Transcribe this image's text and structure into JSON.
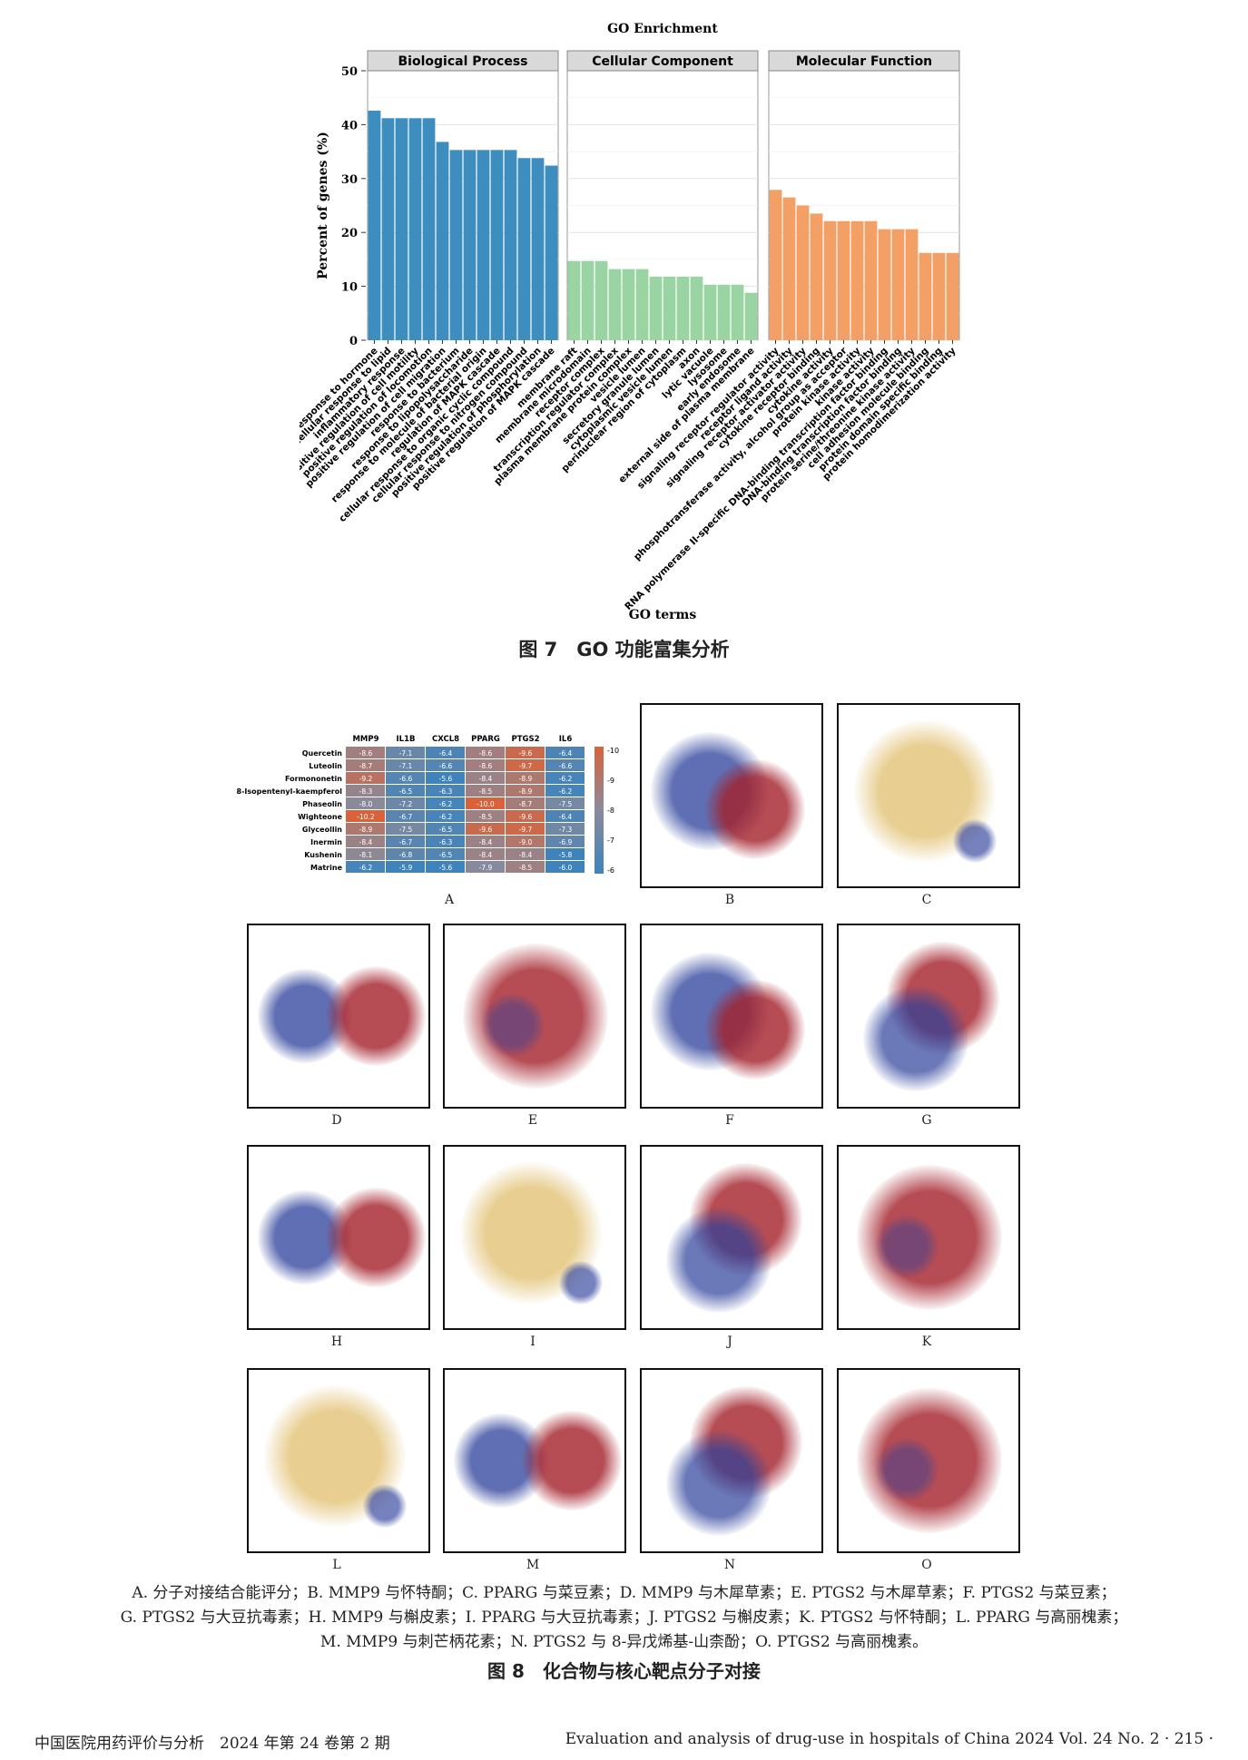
{
  "figure7": {
    "caption": "图 7　GO 功能富集分析",
    "chart_data": {
      "type": "bar",
      "title": "GO Enrichment",
      "xlabel": "GO terms",
      "ylabel": "Percent of genes (%)",
      "ylim": [
        0,
        50
      ],
      "yticks": [
        0,
        10,
        20,
        30,
        40,
        50
      ],
      "grid": true,
      "facets": [
        {
          "name": "Biological Process",
          "color": "#3d8dbf",
          "categories": [
            "response to hormone",
            "cellular response to lipid",
            "inflammatory response",
            "positive regulation of cell motility",
            "positive regulation of locomotion",
            "positive regulation of cell migration",
            "response to bacterium",
            "response to lipopolysaccharide",
            "response to molecule of bacterial origin",
            "regulation of MAPK cascade",
            "cellular response to organic cyclic compound",
            "cellular response to nitrogen compound",
            "positive regulation of phosphorylation",
            "positive regulation of MAPK cascade"
          ],
          "values": [
            42.6,
            41.2,
            41.2,
            41.2,
            41.2,
            36.8,
            35.3,
            35.3,
            35.3,
            35.3,
            35.3,
            33.8,
            33.8,
            32.4
          ]
        },
        {
          "name": "Cellular Component",
          "color": "#9bd4a3",
          "categories": [
            "membrane raft",
            "membrane microdomain",
            "receptor complex",
            "transcription regulator complex",
            "plasma membrane protein complex",
            "vesicle lumen",
            "secretory granule lumen",
            "cytoplasmic vesicle lumen",
            "perinuclear region of cytoplasm",
            "axon",
            "lytic vacuole",
            "lysosome",
            "early endosome",
            "external side of plasma membrane"
          ],
          "values": [
            14.7,
            14.7,
            14.7,
            13.2,
            13.2,
            13.2,
            11.8,
            11.8,
            11.8,
            11.8,
            10.3,
            10.3,
            10.3,
            8.8
          ]
        },
        {
          "name": "Molecular Function",
          "color": "#f2a066",
          "categories": [
            "signaling receptor regulator activity",
            "receptor ligand activity",
            "signaling receptor activator activity",
            "cytokine receptor binding",
            "cytokine activity",
            "phosphotransferase activity, alcohol group as acceptor",
            "protein kinase activity",
            "kinase activity",
            "RNA polymerase II-specific DNA-binding transcription factor binding",
            "DNA-binding transcription factor binding",
            "protein serine/threonine kinase activity",
            "cell adhesion molecule binding",
            "protein domain specific binding",
            "protein homodimerization activity"
          ],
          "values": [
            27.9,
            26.5,
            25.0,
            23.5,
            22.1,
            22.1,
            22.1,
            22.1,
            20.6,
            20.6,
            20.6,
            16.2,
            16.2,
            16.2
          ]
        }
      ]
    }
  },
  "heatmap": {
    "chart_data": {
      "type": "heatmap",
      "columns": [
        "MMP9",
        "IL1B",
        "CXCL8",
        "PPARG",
        "PTGS2",
        "IL6"
      ],
      "rows": [
        "Quercetin",
        "Luteolin",
        "Formononetin",
        "8-Isopentenyl-kaempferol",
        "Phaseolin",
        "Wighteone",
        "Glyceollin",
        "Inermin",
        "Kushenin",
        "Matrine"
      ],
      "values": [
        [
          -8.6,
          -7.1,
          -6.4,
          -8.6,
          -9.6,
          -6.4
        ],
        [
          -8.7,
          -7.1,
          -6.6,
          -8.6,
          -9.7,
          -6.6
        ],
        [
          -9.2,
          -6.6,
          -5.6,
          -8.4,
          -8.9,
          -6.2
        ],
        [
          -8.3,
          -6.5,
          -6.3,
          -8.5,
          -8.9,
          -6.2
        ],
        [
          -8.0,
          -7.2,
          -6.2,
          -10.0,
          -8.7,
          -7.5
        ],
        [
          -10.2,
          -6.7,
          -6.2,
          -8.5,
          -9.6,
          -6.4
        ],
        [
          -8.9,
          -7.5,
          -6.5,
          -9.6,
          -9.7,
          -7.3
        ],
        [
          -8.4,
          -6.7,
          -6.3,
          -8.4,
          -9.0,
          -6.9
        ],
        [
          -8.1,
          -6.8,
          -6.5,
          -8.4,
          -8.4,
          -5.8
        ],
        [
          -6.2,
          -5.9,
          -5.6,
          -7.9,
          -8.5,
          -6.0
        ]
      ],
      "colorbar_ticks": [
        "-10",
        "-9",
        "-8",
        "-7",
        "-6"
      ],
      "color_low": "#3e83bc",
      "color_mid": "#8a8a9a",
      "color_high": "#d9623b"
    }
  },
  "panels": {
    "A": "A",
    "B": "B",
    "C": "C",
    "D": "D",
    "E": "E",
    "F": "F",
    "G": "G",
    "H": "H",
    "I": "I",
    "J": "J",
    "K": "K",
    "L": "L",
    "M": "M",
    "N": "N",
    "O": "O"
  },
  "figure8": {
    "caption_lines": [
      "A. 分子对接结合能评分；B. MMP9 与怀特酮；C. PPARG 与菜豆素；D. MMP9 与木犀草素；E. PTGS2 与木犀草素；F. PTGS2 与菜豆素；",
      "G. PTGS2 与大豆抗毒素；H. MMP9 与槲皮素；I. PPARG 与大豆抗毒素；J. PTGS2 与槲皮素；K. PTGS2 与怀特酮；L. PPARG 与高丽槐素；",
      "M. MMP9 与刺芒柄花素；N. PTGS2 与 8-异戊烯基-山柰酚；O. PTGS2 与高丽槐素。"
    ],
    "title": "图 8　化合物与核心靶点分子对接"
  },
  "footer": {
    "left": "中国医院用药评价与分析　2024 年第 24 卷第 2 期",
    "right": "Evaluation and analysis of drug-use in hospitals of China 2024 Vol. 24 No. 2 · 215 ·"
  },
  "colors": {
    "blue_ribbon": "#2b3f9a",
    "red_ribbon": "#a3202a",
    "tan_ribbon": "#e4c57c"
  }
}
